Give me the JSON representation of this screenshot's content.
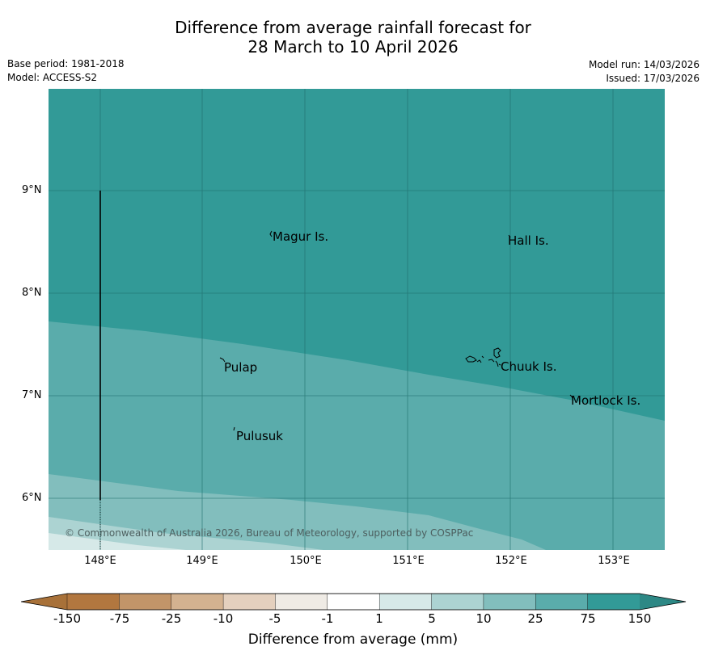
{
  "title": {
    "line1": "Difference from average rainfall forecast for",
    "line2": "28 March to 10 April 2026"
  },
  "meta": {
    "base_period": "Base period: 1981-2018",
    "model": "Model: ACCESS-S2",
    "model_run": "Model run: 14/03/2026",
    "issued": "Issued: 17/03/2026"
  },
  "map": {
    "latitude_labels": [
      "9°N",
      "8°N",
      "7°N",
      "6°N"
    ],
    "longitude_labels": [
      "148°E",
      "149°E",
      "150°E",
      "151°E",
      "152°E",
      "153°E"
    ],
    "places": [
      "Magur Is.",
      "Hall Is.",
      "Pulap",
      "Chuuk Is.",
      "Mortlock Is.",
      "Pulusuk"
    ],
    "copyright": "© Commonwealth of Australia 2026, Bureau of Meteorology, supported by COSPPac"
  },
  "legend": {
    "title": "Difference from average (mm)",
    "ticks": [
      "-150",
      "-75",
      "-25",
      "-10",
      "-5",
      "-1",
      "1",
      "5",
      "10",
      "25",
      "75",
      "150"
    ],
    "colors": [
      "#a87139",
      "#b2773f",
      "#c29569",
      "#d3b290",
      "#e4d0be",
      "#efebe5",
      "#ffffff",
      "#d6e9e8",
      "#acd3d2",
      "#82bebd",
      "#5aacab",
      "#329a97",
      "#2d8885"
    ]
  }
}
